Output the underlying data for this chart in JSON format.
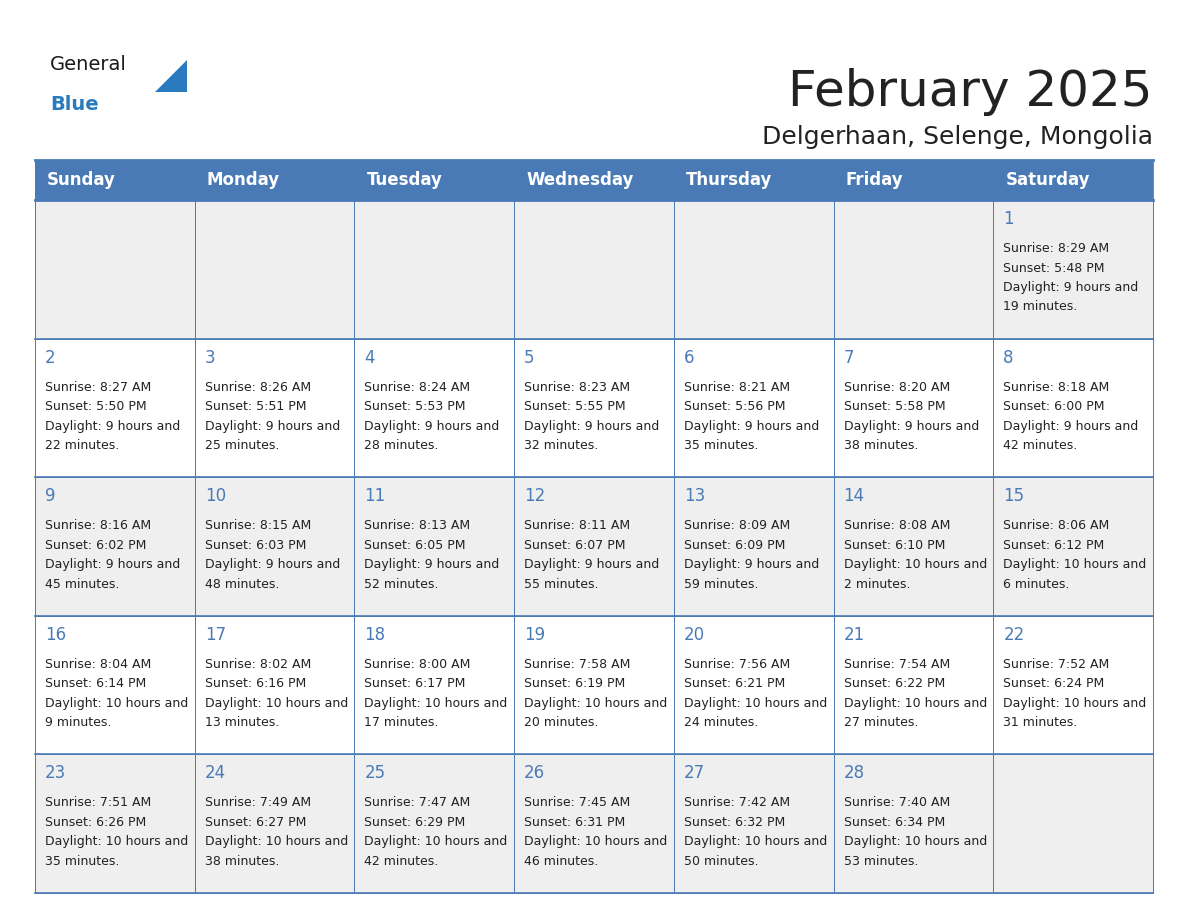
{
  "title": "February 2025",
  "subtitle": "Delgerhaan, Selenge, Mongolia",
  "days_of_week": [
    "Sunday",
    "Monday",
    "Tuesday",
    "Wednesday",
    "Thursday",
    "Friday",
    "Saturday"
  ],
  "header_bg": "#4a7ab5",
  "header_text": "#ffffff",
  "cell_bg_even": "#efefef",
  "cell_bg_odd": "#ffffff",
  "cell_border": "#4a7ab5",
  "day_number_color": "#4a7ab5",
  "info_text_color": "#222222",
  "bg_color": "#ffffff",
  "logo_general_color": "#1a1a1a",
  "logo_blue_color": "#2a7abf",
  "title_fontsize": 36,
  "subtitle_fontsize": 18,
  "header_fontsize": 12,
  "day_num_fontsize": 12,
  "cell_text_fontsize": 9,
  "calendar_data": [
    [
      null,
      null,
      null,
      null,
      null,
      null,
      {
        "day": 1,
        "sunrise": "8:29 AM",
        "sunset": "5:48 PM",
        "daylight": "9 hours and 19 minutes."
      }
    ],
    [
      {
        "day": 2,
        "sunrise": "8:27 AM",
        "sunset": "5:50 PM",
        "daylight": "9 hours and 22 minutes."
      },
      {
        "day": 3,
        "sunrise": "8:26 AM",
        "sunset": "5:51 PM",
        "daylight": "9 hours and 25 minutes."
      },
      {
        "day": 4,
        "sunrise": "8:24 AM",
        "sunset": "5:53 PM",
        "daylight": "9 hours and 28 minutes."
      },
      {
        "day": 5,
        "sunrise": "8:23 AM",
        "sunset": "5:55 PM",
        "daylight": "9 hours and 32 minutes."
      },
      {
        "day": 6,
        "sunrise": "8:21 AM",
        "sunset": "5:56 PM",
        "daylight": "9 hours and 35 minutes."
      },
      {
        "day": 7,
        "sunrise": "8:20 AM",
        "sunset": "5:58 PM",
        "daylight": "9 hours and 38 minutes."
      },
      {
        "day": 8,
        "sunrise": "8:18 AM",
        "sunset": "6:00 PM",
        "daylight": "9 hours and 42 minutes."
      }
    ],
    [
      {
        "day": 9,
        "sunrise": "8:16 AM",
        "sunset": "6:02 PM",
        "daylight": "9 hours and 45 minutes."
      },
      {
        "day": 10,
        "sunrise": "8:15 AM",
        "sunset": "6:03 PM",
        "daylight": "9 hours and 48 minutes."
      },
      {
        "day": 11,
        "sunrise": "8:13 AM",
        "sunset": "6:05 PM",
        "daylight": "9 hours and 52 minutes."
      },
      {
        "day": 12,
        "sunrise": "8:11 AM",
        "sunset": "6:07 PM",
        "daylight": "9 hours and 55 minutes."
      },
      {
        "day": 13,
        "sunrise": "8:09 AM",
        "sunset": "6:09 PM",
        "daylight": "9 hours and 59 minutes."
      },
      {
        "day": 14,
        "sunrise": "8:08 AM",
        "sunset": "6:10 PM",
        "daylight": "10 hours and 2 minutes."
      },
      {
        "day": 15,
        "sunrise": "8:06 AM",
        "sunset": "6:12 PM",
        "daylight": "10 hours and 6 minutes."
      }
    ],
    [
      {
        "day": 16,
        "sunrise": "8:04 AM",
        "sunset": "6:14 PM",
        "daylight": "10 hours and 9 minutes."
      },
      {
        "day": 17,
        "sunrise": "8:02 AM",
        "sunset": "6:16 PM",
        "daylight": "10 hours and 13 minutes."
      },
      {
        "day": 18,
        "sunrise": "8:00 AM",
        "sunset": "6:17 PM",
        "daylight": "10 hours and 17 minutes."
      },
      {
        "day": 19,
        "sunrise": "7:58 AM",
        "sunset": "6:19 PM",
        "daylight": "10 hours and 20 minutes."
      },
      {
        "day": 20,
        "sunrise": "7:56 AM",
        "sunset": "6:21 PM",
        "daylight": "10 hours and 24 minutes."
      },
      {
        "day": 21,
        "sunrise": "7:54 AM",
        "sunset": "6:22 PM",
        "daylight": "10 hours and 27 minutes."
      },
      {
        "day": 22,
        "sunrise": "7:52 AM",
        "sunset": "6:24 PM",
        "daylight": "10 hours and 31 minutes."
      }
    ],
    [
      {
        "day": 23,
        "sunrise": "7:51 AM",
        "sunset": "6:26 PM",
        "daylight": "10 hours and 35 minutes."
      },
      {
        "day": 24,
        "sunrise": "7:49 AM",
        "sunset": "6:27 PM",
        "daylight": "10 hours and 38 minutes."
      },
      {
        "day": 25,
        "sunrise": "7:47 AM",
        "sunset": "6:29 PM",
        "daylight": "10 hours and 42 minutes."
      },
      {
        "day": 26,
        "sunrise": "7:45 AM",
        "sunset": "6:31 PM",
        "daylight": "10 hours and 46 minutes."
      },
      {
        "day": 27,
        "sunrise": "7:42 AM",
        "sunset": "6:32 PM",
        "daylight": "10 hours and 50 minutes."
      },
      {
        "day": 28,
        "sunrise": "7:40 AM",
        "sunset": "6:34 PM",
        "daylight": "10 hours and 53 minutes."
      },
      null
    ]
  ]
}
